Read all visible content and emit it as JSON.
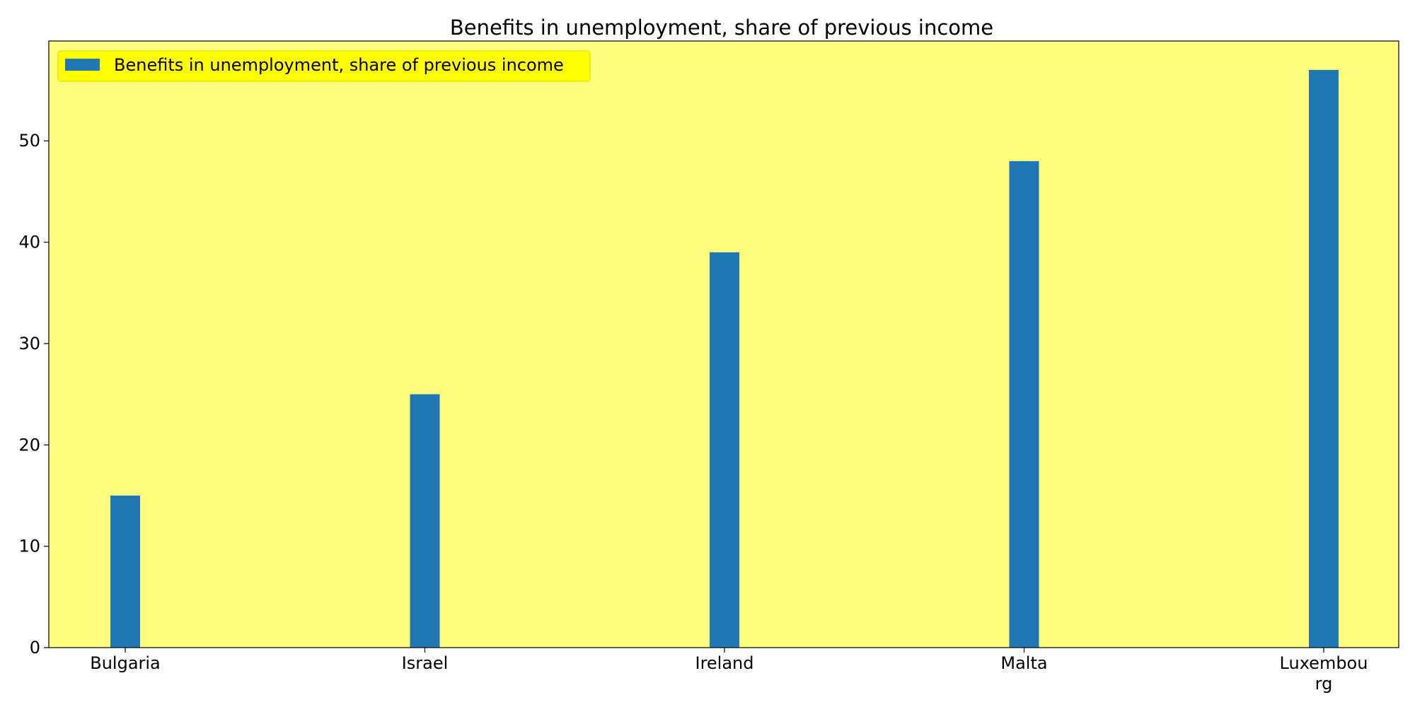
{
  "chart_data": {
    "type": "bar",
    "title": "Benefits in unemployment, share of previous income",
    "xlabel": "",
    "ylabel": "",
    "categories": [
      "Bulgaria",
      "Israel",
      "Ireland",
      "Malta",
      "Luxembourg"
    ],
    "category_display": [
      [
        "Bulgaria"
      ],
      [
        "Israel"
      ],
      [
        "Ireland"
      ],
      [
        "Malta"
      ],
      [
        "Luxembou",
        "rg"
      ]
    ],
    "series": [
      {
        "name": "Benefits in unemployment, share of previous income",
        "values": [
          15,
          25,
          39,
          48,
          57
        ],
        "color": "#1f77b4"
      }
    ],
    "ylim": [
      0,
      59.85
    ],
    "yticks": [
      0,
      10,
      20,
      30,
      40,
      50
    ],
    "grid": false,
    "legend": "upper-left",
    "plot_background": "#ffff7f",
    "legend_background": "#ffff00"
  }
}
